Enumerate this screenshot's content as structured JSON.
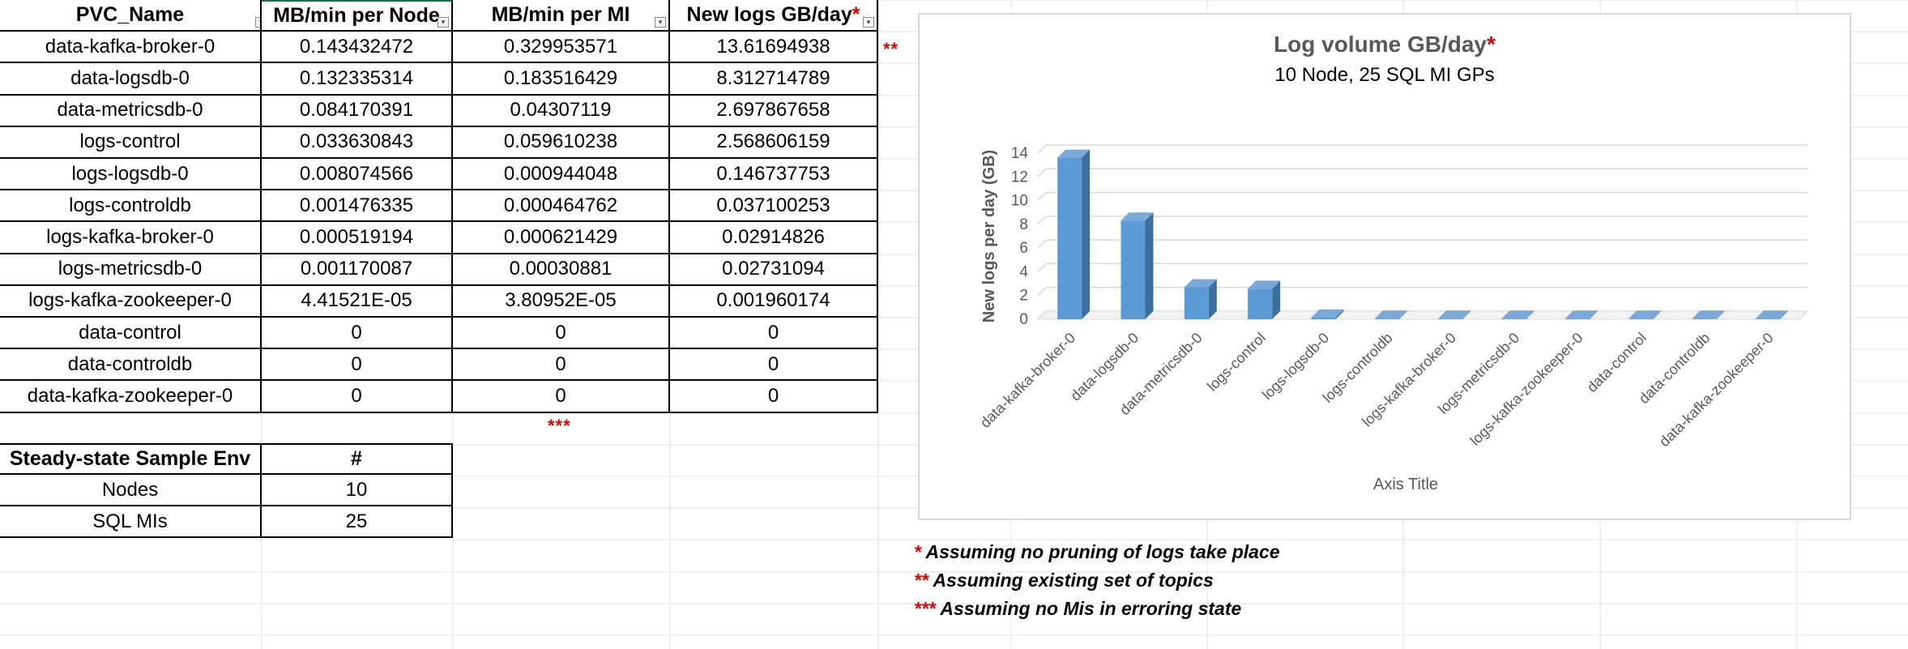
{
  "table": {
    "headers": [
      "PVC_Name",
      "MB/min per Node",
      "MB/min per MI",
      "New logs GB/day"
    ],
    "header_star": "*",
    "rows": [
      [
        "data-kafka-broker-0",
        "0.143432472",
        "0.329953571",
        "13.61694938"
      ],
      [
        "data-logsdb-0",
        "0.132335314",
        "0.183516429",
        "8.312714789"
      ],
      [
        "data-metricsdb-0",
        "0.084170391",
        "0.04307119",
        "2.697867658"
      ],
      [
        "logs-control",
        "0.033630843",
        "0.059610238",
        "2.568606159"
      ],
      [
        "logs-logsdb-0",
        "0.008074566",
        "0.000944048",
        "0.146737753"
      ],
      [
        "logs-controldb",
        "0.001476335",
        "0.000464762",
        "0.037100253"
      ],
      [
        "logs-kafka-broker-0",
        "0.000519194",
        "0.000621429",
        "0.02914826"
      ],
      [
        "logs-metricsdb-0",
        "0.001170087",
        "0.00030881",
        "0.02731094"
      ],
      [
        "logs-kafka-zookeeper-0",
        "4.41521E-05",
        "3.80952E-05",
        "0.001960174"
      ],
      [
        "data-control",
        "0",
        "0",
        "0"
      ],
      [
        "data-controldb",
        "0",
        "0",
        "0"
      ],
      [
        "data-kafka-zookeeper-0",
        "0",
        "0",
        "0"
      ]
    ],
    "row1_mark": "**",
    "below_mark": "***"
  },
  "env_table": {
    "headers": [
      "Steady-state Sample Env",
      "#"
    ],
    "rows": [
      [
        "Nodes",
        "10"
      ],
      [
        "SQL MIs",
        "25"
      ]
    ]
  },
  "notes": [
    {
      "stars": "*",
      "text": " Assuming no pruning of logs take place"
    },
    {
      "stars": "**",
      "text": " Assuming existing set of topics"
    },
    {
      "stars": "***",
      "text": " Assuming no Mis in erroring state"
    }
  ],
  "chart_data": {
    "type": "bar",
    "title": "Log volume GB/day",
    "title_star": "*",
    "subtitle": "10 Node, 25 SQL MI GPs",
    "xlabel": "Axis Title",
    "ylabel": "New logs per day (GB)",
    "ylim": [
      0,
      14
    ],
    "yticks": [
      "0",
      "2",
      "4",
      "6",
      "8",
      "10",
      "12",
      "14"
    ],
    "grid": true,
    "categories": [
      "data-kafka-broker-0",
      "data-logsdb-0",
      "data-metricsdb-0",
      "logs-control",
      "logs-logsdb-0",
      "logs-controldb",
      "logs-kafka-broker-0",
      "logs-metricsdb-0",
      "logs-kafka-zookeeper-0",
      "data-control",
      "data-controldb",
      "data-kafka-zookeeper-0"
    ],
    "values": [
      13.61694938,
      8.312714789,
      2.697867658,
      2.568606159,
      0.146737753,
      0.037100253,
      0.02914826,
      0.02731094,
      0.001960174,
      0,
      0,
      0
    ],
    "bar_color": "#5b9bd5"
  },
  "colors": {
    "accent_red": "#e00000",
    "gridline": "#e1e1e1",
    "selected_border": "#1e7145"
  }
}
